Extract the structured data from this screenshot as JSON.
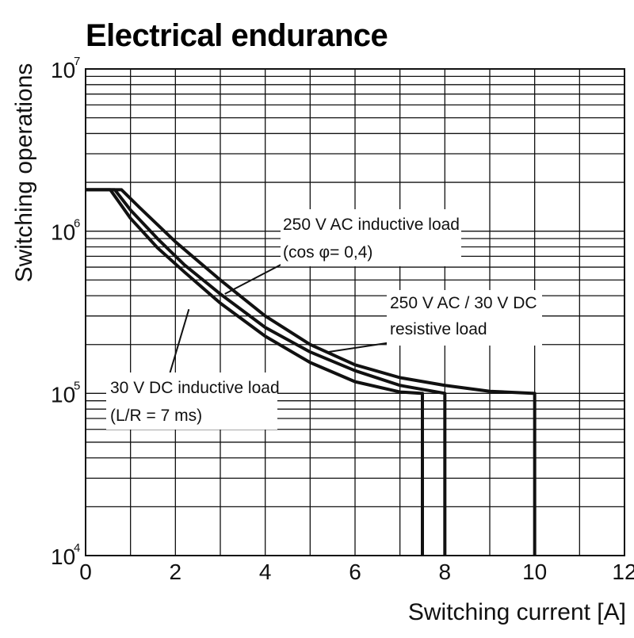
{
  "chart_data": {
    "type": "line",
    "title": "Electrical endurance",
    "xlabel": "Switching current [A]",
    "ylabel": "Switching operations",
    "x_scale": "linear",
    "y_scale": "log",
    "xlim": [
      0,
      12
    ],
    "ylim": [
      10000,
      10000000
    ],
    "x_ticks": [
      0,
      2,
      4,
      6,
      8,
      10,
      12
    ],
    "x_tick_labels": [
      "0",
      "2",
      "4",
      "6",
      "8",
      "10",
      "12"
    ],
    "x_minor_step": 1,
    "y_ticks": [
      {
        "base": "10",
        "exp": "4",
        "value": 10000
      },
      {
        "base": "10",
        "exp": "5",
        "value": 100000
      },
      {
        "base": "10",
        "exp": "6",
        "value": 1000000
      },
      {
        "base": "10",
        "exp": "7",
        "value": 10000000
      }
    ],
    "grid": true,
    "legend": "none",
    "series": [
      {
        "x": [
          0,
          0.55,
          1.0,
          1.6,
          2.2,
          3.0,
          4.0,
          5.0,
          6.0,
          7.0,
          7.5,
          7.5
        ],
        "y": [
          1800000,
          1800000,
          1200000,
          790000,
          560000,
          360000,
          225000,
          155000,
          118000,
          102000,
          100000,
          10000
        ]
      },
      {
        "x": [
          0,
          0.65,
          1.0,
          1.6,
          2.2,
          3.0,
          4.0,
          5.0,
          6.0,
          7.0,
          8.0,
          8.0
        ],
        "y": [
          1800000,
          1800000,
          1350000,
          900000,
          620000,
          410000,
          255000,
          180000,
          138000,
          112000,
          100000,
          10000
        ]
      },
      {
        "x": [
          0,
          0.8,
          1.2,
          2.0,
          3.0,
          4.0,
          5.0,
          6.0,
          7.0,
          8.0,
          9.0,
          10.0,
          10.0
        ],
        "y": [
          1800000,
          1800000,
          1400000,
          860000,
          500000,
          300000,
          200000,
          150000,
          125000,
          112000,
          103000,
          100000,
          10000
        ]
      }
    ],
    "annotations": [
      {
        "lines": [
          "250 V AC inductive load",
          "(cos φ= 0,4)"
        ],
        "points_to": {
          "x": 3.1,
          "y": 410000
        }
      },
      {
        "lines": [
          "250 V AC / 30 V DC",
          "resistive load"
        ],
        "points_to": {
          "x": 5.4,
          "y": 180000
        }
      },
      {
        "lines": [
          "30 V DC inductive load",
          "(L/R = 7 ms)"
        ],
        "points_to": {
          "x": 2.3,
          "y": 330000
        }
      }
    ]
  }
}
